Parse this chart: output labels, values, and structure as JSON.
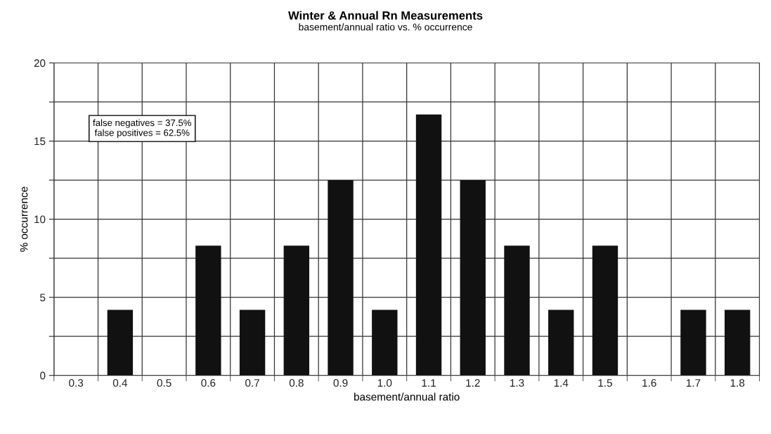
{
  "chart_data": {
    "type": "bar",
    "title": "Winter & Annual Rn Measurements",
    "subtitle": "basement/annual ratio vs. % occurrence",
    "xlabel": "basement/annual ratio",
    "ylabel": "% occurrence",
    "categories": [
      "0.3",
      "0.4",
      "0.5",
      "0.6",
      "0.7",
      "0.8",
      "0.9",
      "1.0",
      "1.1",
      "1.2",
      "1.3",
      "1.4",
      "1.5",
      "1.6",
      "1.7",
      "1.8"
    ],
    "values": [
      0,
      4.2,
      0,
      8.3,
      4.2,
      8.3,
      12.5,
      4.2,
      16.7,
      12.5,
      8.3,
      4.2,
      8.3,
      0,
      4.2,
      4.2
    ],
    "color": "#111111",
    "ylim": [
      0,
      20
    ],
    "yticks": [
      0,
      {
        "value": 2.5,
        "label": null
      },
      5,
      {
        "value": 7.5,
        "label": null
      },
      10,
      {
        "value": 12.5,
        "label": null
      },
      15,
      {
        "value": 17.5,
        "label": null
      },
      20
    ],
    "grid": true,
    "annotations": [
      "false negatives = 37.5%",
      "false positives = 62.5%"
    ]
  }
}
